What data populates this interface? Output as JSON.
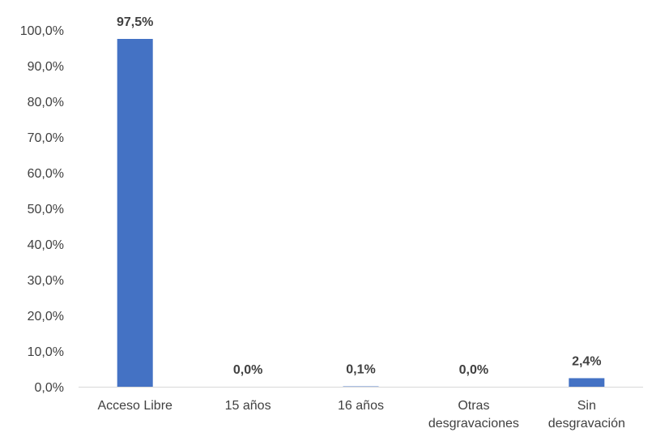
{
  "chart_data": {
    "type": "bar",
    "categories": [
      [
        "Acceso Libre"
      ],
      [
        "15 años"
      ],
      [
        "16 años"
      ],
      [
        "Otras",
        "desgravaciones"
      ],
      [
        "Sin",
        "desgravación"
      ]
    ],
    "values": [
      97.5,
      0.0,
      0.1,
      0.0,
      2.4
    ],
    "data_labels": [
      "97,5%",
      "0,0%",
      "0,1%",
      "0,0%",
      "2,4%"
    ],
    "y_ticks": [
      "0,0%",
      "10,0%",
      "20,0%",
      "30,0%",
      "40,0%",
      "50,0%",
      "60,0%",
      "70,0%",
      "80,0%",
      "90,0%",
      "100,0%"
    ],
    "ylim": [
      0,
      100
    ],
    "grid": false,
    "legend": "none",
    "title": "",
    "xlabel": "",
    "ylabel": "",
    "colors": {
      "bar": "#4472C4",
      "axis": "#D9D9D9",
      "text": "#404040"
    }
  }
}
